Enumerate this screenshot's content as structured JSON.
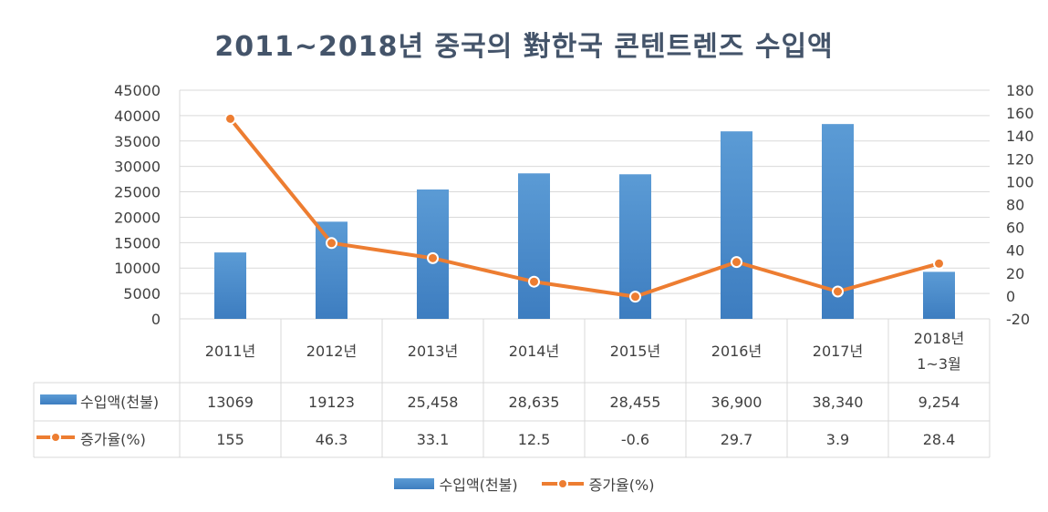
{
  "chart_data": {
    "type": "bar",
    "title": "2011~2018년 중국의 對한국 콘텐트렌즈 수입액",
    "categories": [
      "2011년",
      "2012년",
      "2013년",
      "2014년",
      "2015년",
      "2016년",
      "2017년",
      "2018년\n1~3월"
    ],
    "series": [
      {
        "name": "수입액(천불)",
        "type": "bar",
        "axis": "left",
        "color": "#5b9bd5",
        "values": [
          13069,
          19123,
          25458,
          28635,
          28455,
          36900,
          38340,
          9254
        ],
        "labels": [
          "13069",
          "19123",
          "25,458",
          "28,635",
          "28,455",
          "36,900",
          "38,340",
          "9,254"
        ]
      },
      {
        "name": "증가율(%)",
        "type": "line",
        "axis": "right",
        "color": "#ed7d31",
        "values": [
          155,
          46.3,
          33.1,
          12.5,
          -0.6,
          29.7,
          3.9,
          28.4
        ],
        "labels": [
          "155",
          "46.3",
          "33.1",
          "12.5",
          "-0.6",
          "29.7",
          "3.9",
          "28.4"
        ]
      }
    ],
    "ylim": [
      0,
      45000
    ],
    "y_ticks": [
      "0",
      "5000",
      "10000",
      "15000",
      "20000",
      "25000",
      "30000",
      "35000",
      "40000",
      "45000"
    ],
    "y2lim": [
      -20,
      180
    ],
    "y2_ticks": [
      "-20",
      "0",
      "20",
      "40",
      "60",
      "80",
      "100",
      "120",
      "140",
      "160",
      "180"
    ],
    "grid": true,
    "legend": "bottom",
    "data_table": true
  }
}
